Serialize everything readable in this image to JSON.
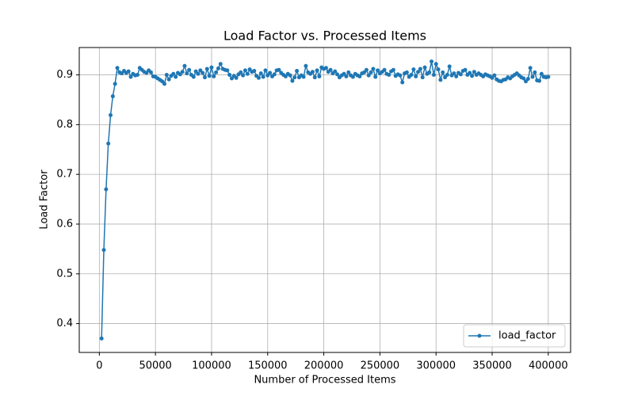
{
  "chart_data": {
    "type": "line",
    "title": "Load Factor vs. Processed Items",
    "xlabel": "Number of Processed Items",
    "ylabel": "Load Factor",
    "x": [
      2000,
      4000,
      6000,
      8000,
      10000,
      12000,
      14000,
      16000,
      18000,
      20000,
      22000,
      24000,
      26000,
      28000,
      30000,
      32000,
      34000,
      36000,
      38000,
      40000,
      42000,
      44000,
      46000,
      48000,
      50000,
      52000,
      54000,
      56000,
      58000,
      60000,
      62000,
      64000,
      66000,
      68000,
      70000,
      72000,
      74000,
      76000,
      78000,
      80000,
      82000,
      84000,
      86000,
      88000,
      90000,
      92000,
      94000,
      96000,
      98000,
      100000,
      102000,
      104000,
      106000,
      108000,
      110000,
      112000,
      114000,
      116000,
      118000,
      120000,
      122000,
      124000,
      126000,
      128000,
      130000,
      132000,
      134000,
      136000,
      138000,
      140000,
      142000,
      144000,
      146000,
      148000,
      150000,
      152000,
      154000,
      156000,
      158000,
      160000,
      162000,
      164000,
      166000,
      168000,
      170000,
      172000,
      174000,
      176000,
      178000,
      180000,
      182000,
      184000,
      186000,
      188000,
      190000,
      192000,
      194000,
      196000,
      198000,
      200000,
      202000,
      204000,
      206000,
      208000,
      210000,
      212000,
      214000,
      216000,
      218000,
      220000,
      222000,
      224000,
      226000,
      228000,
      230000,
      232000,
      234000,
      236000,
      238000,
      240000,
      242000,
      244000,
      246000,
      248000,
      250000,
      252000,
      254000,
      256000,
      258000,
      260000,
      262000,
      264000,
      266000,
      268000,
      270000,
      272000,
      274000,
      276000,
      278000,
      280000,
      282000,
      284000,
      286000,
      288000,
      290000,
      292000,
      294000,
      296000,
      298000,
      300000,
      302000,
      304000,
      306000,
      308000,
      310000,
      312000,
      314000,
      316000,
      318000,
      320000,
      322000,
      324000,
      326000,
      328000,
      330000,
      332000,
      334000,
      336000,
      338000,
      340000,
      342000,
      344000,
      346000,
      348000,
      350000,
      352000,
      354000,
      356000,
      358000,
      360000,
      362000,
      364000,
      366000,
      368000,
      370000,
      372000,
      374000,
      376000,
      378000,
      380000,
      382000,
      384000,
      386000,
      388000,
      390000,
      392000,
      394000,
      396000,
      398000,
      400000
    ],
    "series": [
      {
        "name": "load_factor",
        "color": "#1f77b4",
        "values": [
          0.37,
          0.548,
          0.67,
          0.762,
          0.819,
          0.857,
          0.882,
          0.914,
          0.905,
          0.903,
          0.908,
          0.904,
          0.907,
          0.896,
          0.902,
          0.899,
          0.9,
          0.914,
          0.91,
          0.906,
          0.904,
          0.909,
          0.905,
          0.897,
          0.896,
          0.893,
          0.89,
          0.887,
          0.882,
          0.9,
          0.891,
          0.898,
          0.902,
          0.896,
          0.904,
          0.901,
          0.906,
          0.918,
          0.903,
          0.91,
          0.9,
          0.896,
          0.907,
          0.902,
          0.909,
          0.904,
          0.895,
          0.912,
          0.898,
          0.915,
          0.897,
          0.905,
          0.913,
          0.922,
          0.912,
          0.91,
          0.909,
          0.9,
          0.893,
          0.898,
          0.894,
          0.901,
          0.905,
          0.899,
          0.909,
          0.902,
          0.911,
          0.906,
          0.908,
          0.898,
          0.894,
          0.903,
          0.896,
          0.909,
          0.899,
          0.904,
          0.897,
          0.901,
          0.909,
          0.91,
          0.904,
          0.9,
          0.897,
          0.902,
          0.899,
          0.888,
          0.895,
          0.908,
          0.895,
          0.899,
          0.896,
          0.918,
          0.905,
          0.902,
          0.906,
          0.895,
          0.909,
          0.897,
          0.915,
          0.912,
          0.914,
          0.906,
          0.91,
          0.903,
          0.907,
          0.901,
          0.895,
          0.899,
          0.902,
          0.897,
          0.905,
          0.899,
          0.896,
          0.902,
          0.899,
          0.897,
          0.903,
          0.905,
          0.91,
          0.899,
          0.905,
          0.912,
          0.896,
          0.909,
          0.903,
          0.906,
          0.91,
          0.902,
          0.9,
          0.907,
          0.91,
          0.898,
          0.901,
          0.899,
          0.885,
          0.903,
          0.905,
          0.896,
          0.9,
          0.911,
          0.897,
          0.906,
          0.912,
          0.895,
          0.915,
          0.902,
          0.905,
          0.927,
          0.9,
          0.922,
          0.911,
          0.89,
          0.905,
          0.895,
          0.9,
          0.917,
          0.899,
          0.903,
          0.897,
          0.904,
          0.901,
          0.908,
          0.91,
          0.9,
          0.904,
          0.898,
          0.906,
          0.9,
          0.903,
          0.9,
          0.897,
          0.901,
          0.899,
          0.897,
          0.894,
          0.899,
          0.891,
          0.888,
          0.887,
          0.89,
          0.891,
          0.895,
          0.893,
          0.897,
          0.9,
          0.903,
          0.899,
          0.895,
          0.893,
          0.887,
          0.892,
          0.914,
          0.896,
          0.905,
          0.889,
          0.888,
          0.902,
          0.896,
          0.895,
          0.896
        ]
      }
    ],
    "xlim": [
      -17900,
      419900
    ],
    "ylim": [
      0.342,
      0.955
    ],
    "xticks": [
      0,
      50000,
      100000,
      150000,
      200000,
      250000,
      300000,
      350000,
      400000
    ],
    "yticks": [
      0.4,
      0.5,
      0.6,
      0.7,
      0.8,
      0.9
    ],
    "grid": true,
    "legend": "lower right"
  }
}
